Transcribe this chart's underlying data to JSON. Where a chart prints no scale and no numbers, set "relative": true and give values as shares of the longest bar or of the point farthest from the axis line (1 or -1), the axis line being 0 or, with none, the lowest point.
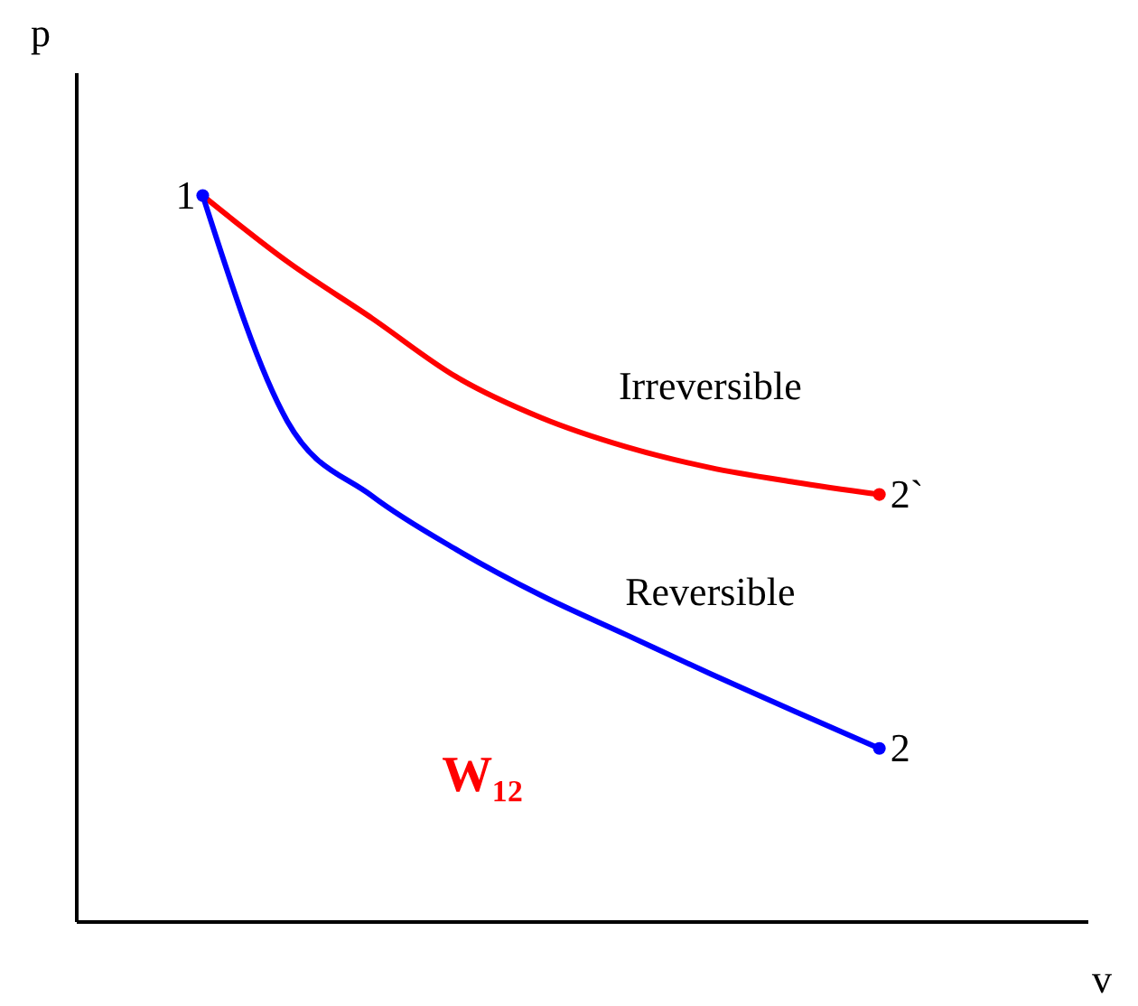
{
  "chart_data": {
    "type": "line",
    "relative": true,
    "xlabel": "v",
    "ylabel": "p",
    "categories": [
      null,
      null,
      null,
      null,
      null,
      null,
      null,
      null,
      null
    ],
    "series": [
      {
        "name": "Irreversible",
        "color": "#ff0000",
        "values": [
          1,
          0.909,
          0.831,
          0.75,
          0.694,
          0.654,
          0.625,
          0.605,
          0.588
        ]
      },
      {
        "name": "Reversible",
        "color": "#0000ff",
        "values": [
          1,
          0.689,
          0.586,
          0.512,
          0.449,
          0.395,
          0.341,
          0.289,
          0.238
        ]
      }
    ],
    "annotations": [
      "1",
      "2`",
      "2",
      "W₁₂"
    ],
    "legend": false,
    "grid": false
  }
}
